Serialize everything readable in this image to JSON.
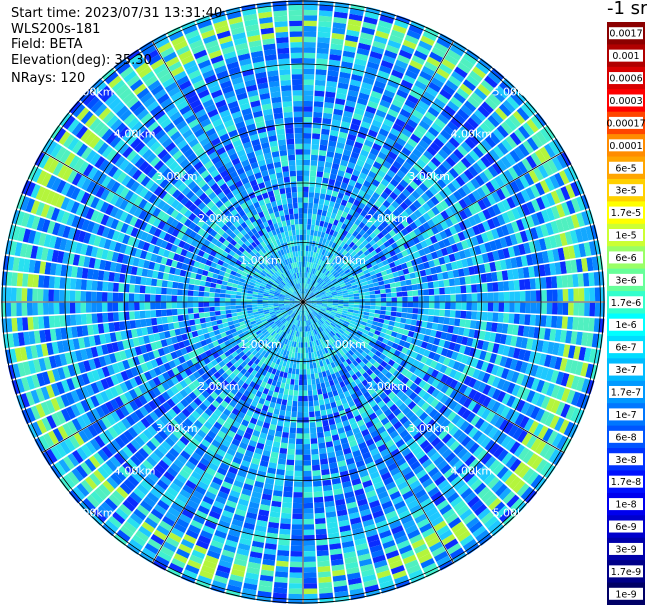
{
  "header": {
    "start_time": "Start time: 2023/07/31 13:31:40",
    "instrument": "WLS200s-181",
    "field": "Field: BETA",
    "elevation": "Elevation(deg): 35.30",
    "nrays": "NRays: 120"
  },
  "colorbar": {
    "units": "-1 sr",
    "labels": [
      "0.0017",
      "0.001",
      "0.0006",
      "0.0003",
      "0.00017",
      "0.0001",
      "6e-5",
      "3e-5",
      "1.7e-5",
      "1e-5",
      "6e-6",
      "3e-6",
      "1.7e-6",
      "1e-6",
      "6e-7",
      "3e-7",
      "1.7e-7",
      "1e-7",
      "6e-8",
      "3e-8",
      "1.7e-8",
      "1e-8",
      "6e-9",
      "3e-9",
      "1.7e-9",
      "1e-9"
    ],
    "colors": [
      "#8b0000",
      "#b00000",
      "#d80000",
      "#ff0000",
      "#ff4500",
      "#ff8c00",
      "#ffa500",
      "#ffd000",
      "#ffff00",
      "#ccff33",
      "#99ff66",
      "#66ff99",
      "#33ffcc",
      "#00ffff",
      "#00ddff",
      "#00bbff",
      "#0099ff",
      "#0077ff",
      "#0055ff",
      "#0033ff",
      "#0011ff",
      "#0000ee",
      "#0000cc",
      "#0000aa",
      "#000088",
      "#000066"
    ]
  },
  "chart_data": {
    "type": "heatmap",
    "projection": "polar",
    "field": "BETA",
    "nrays": 120,
    "elevation_deg": 35.3,
    "radial_unit": "km",
    "range_rings": [
      1,
      2,
      3,
      4,
      5
    ],
    "ring_labels": [
      "1.00km",
      "2.00km",
      "3.00km",
      "4.00km",
      "5.00km"
    ],
    "spoke_step_deg": 30,
    "dominant_value_range": [
      "1e-8",
      "1e-7"
    ],
    "notes_band_values": "3e-7"
  }
}
